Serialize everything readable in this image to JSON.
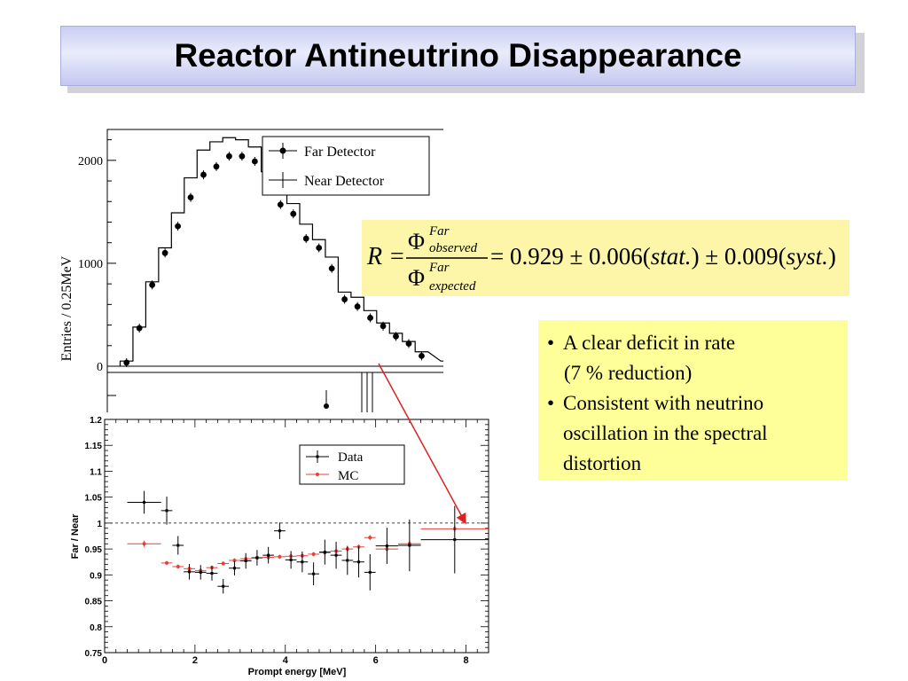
{
  "slide": {
    "title": "Reactor Antineutrino Disappearance"
  },
  "formula": {
    "lhs": "R =",
    "num_symbol": "Φ",
    "num_sup": "Far",
    "num_sub": "observed",
    "den_symbol": "Φ",
    "den_sup": "Far",
    "den_sub": "expected",
    "rhs_text": "= 0.929 ± 0.006(",
    "stat": "stat.",
    "mid": ") ± 0.009(",
    "syst": "syst.",
    "end": ")"
  },
  "bullets": [
    {
      "marker": "•",
      "lines": [
        "A clear deficit in rate",
        "(7 % reduction)"
      ]
    },
    {
      "marker": "•",
      "lines": [
        "Consistent with neutrino",
        "oscillation in the spectral",
        "distortion"
      ]
    }
  ],
  "chart_data": [
    {
      "type": "scatter",
      "ylabel": "Entries / 0.25MeV",
      "ylim": [
        0,
        2300
      ],
      "yticks": [
        "0",
        "1000",
        "2000"
      ],
      "legend": [
        "Far Detector",
        "Near Detector"
      ],
      "legend_position": "top-right",
      "series": [
        {
          "name": "Far Detector",
          "x": [
            0.875,
            1.125,
            1.375,
            1.625,
            1.875,
            2.125,
            2.375,
            2.625,
            2.875,
            3.125,
            3.375,
            3.625,
            3.875,
            4.125,
            4.375,
            4.625,
            4.875,
            5.125,
            5.375,
            5.625,
            5.875,
            6.125,
            6.375,
            6.625,
            7.5
          ],
          "values": [
            35,
            370,
            790,
            1100,
            1360,
            1640,
            1860,
            1940,
            2040,
            2040,
            1990,
            1750,
            1570,
            1480,
            1240,
            1150,
            950,
            650,
            580,
            470,
            390,
            290,
            220,
            100,
            60
          ]
        },
        {
          "name": "Near Detector",
          "x": [
            0.875,
            1.125,
            1.375,
            1.625,
            1.875,
            2.125,
            2.375,
            2.625,
            2.875,
            3.125,
            3.375,
            3.625,
            3.875,
            4.125,
            4.375,
            4.625,
            4.875,
            5.125,
            5.375,
            5.625,
            5.875,
            6.125,
            6.375,
            6.625,
            7.5
          ],
          "values": [
            50,
            380,
            820,
            1150,
            1490,
            1830,
            2100,
            2180,
            2220,
            2200,
            2130,
            1890,
            1740,
            1580,
            1380,
            1230,
            1060,
            720,
            670,
            540,
            420,
            320,
            240,
            140,
            50
          ]
        }
      ]
    },
    {
      "type": "scatter",
      "xlabel": "Prompt energy [MeV]",
      "ylabel": "Far / Near",
      "xlim": [
        0,
        8.5
      ],
      "ylim": [
        0.75,
        1.2
      ],
      "xticks": [
        "0",
        "2",
        "4",
        "6",
        "8"
      ],
      "yticks": [
        "0.75",
        "0.8",
        "0.85",
        "0.9",
        "0.95",
        "1",
        "1.05",
        "1.1",
        "1.15",
        "1.2"
      ],
      "reference_line": 1.0,
      "legend": [
        "Data",
        "MC"
      ],
      "legend_position": "top-right",
      "series": [
        {
          "name": "Data",
          "color": "#000000",
          "x": [
            0.875,
            1.375,
            1.625,
            1.875,
            2.125,
            2.375,
            2.625,
            2.875,
            3.125,
            3.375,
            3.625,
            3.875,
            4.125,
            4.375,
            4.625,
            4.875,
            5.125,
            5.375,
            5.625,
            5.875,
            6.25,
            6.75,
            7.75
          ],
          "values": [
            1.04,
            1.024,
            0.957,
            0.906,
            0.905,
            0.903,
            0.878,
            0.913,
            0.927,
            0.933,
            0.938,
            0.985,
            0.929,
            0.925,
            0.902,
            0.944,
            0.938,
            0.928,
            0.925,
            0.905,
            0.956,
            0.957,
            0.968
          ],
          "errors": [
            0.022,
            0.027,
            0.018,
            0.015,
            0.014,
            0.014,
            0.014,
            0.014,
            0.015,
            0.015,
            0.016,
            0.016,
            0.017,
            0.02,
            0.022,
            0.024,
            0.026,
            0.028,
            0.03,
            0.035,
            0.035,
            0.05,
            0.065
          ]
        },
        {
          "name": "MC",
          "color": "#e8403a",
          "x": [
            0.875,
            1.375,
            1.625,
            1.875,
            2.125,
            2.375,
            2.625,
            2.875,
            3.125,
            3.375,
            3.625,
            3.875,
            4.125,
            4.375,
            4.625,
            4.875,
            5.125,
            5.375,
            5.625,
            5.875,
            6.25,
            6.75,
            7.75
          ],
          "values": [
            0.96,
            0.923,
            0.916,
            0.912,
            0.908,
            0.914,
            0.922,
            0.928,
            0.931,
            0.933,
            0.934,
            0.935,
            0.936,
            0.937,
            0.94,
            0.943,
            0.946,
            0.95,
            0.954,
            0.972,
            0.95,
            0.96,
            0.989
          ],
          "errors": [
            0.006,
            0.004,
            0.004,
            0.004,
            0.004,
            0.004,
            0.004,
            0.004,
            0.004,
            0.004,
            0.004,
            0.004,
            0.004,
            0.004,
            0.004,
            0.004,
            0.004,
            0.004,
            0.005,
            0.005,
            0.005,
            0.005,
            0.006
          ]
        }
      ]
    }
  ]
}
